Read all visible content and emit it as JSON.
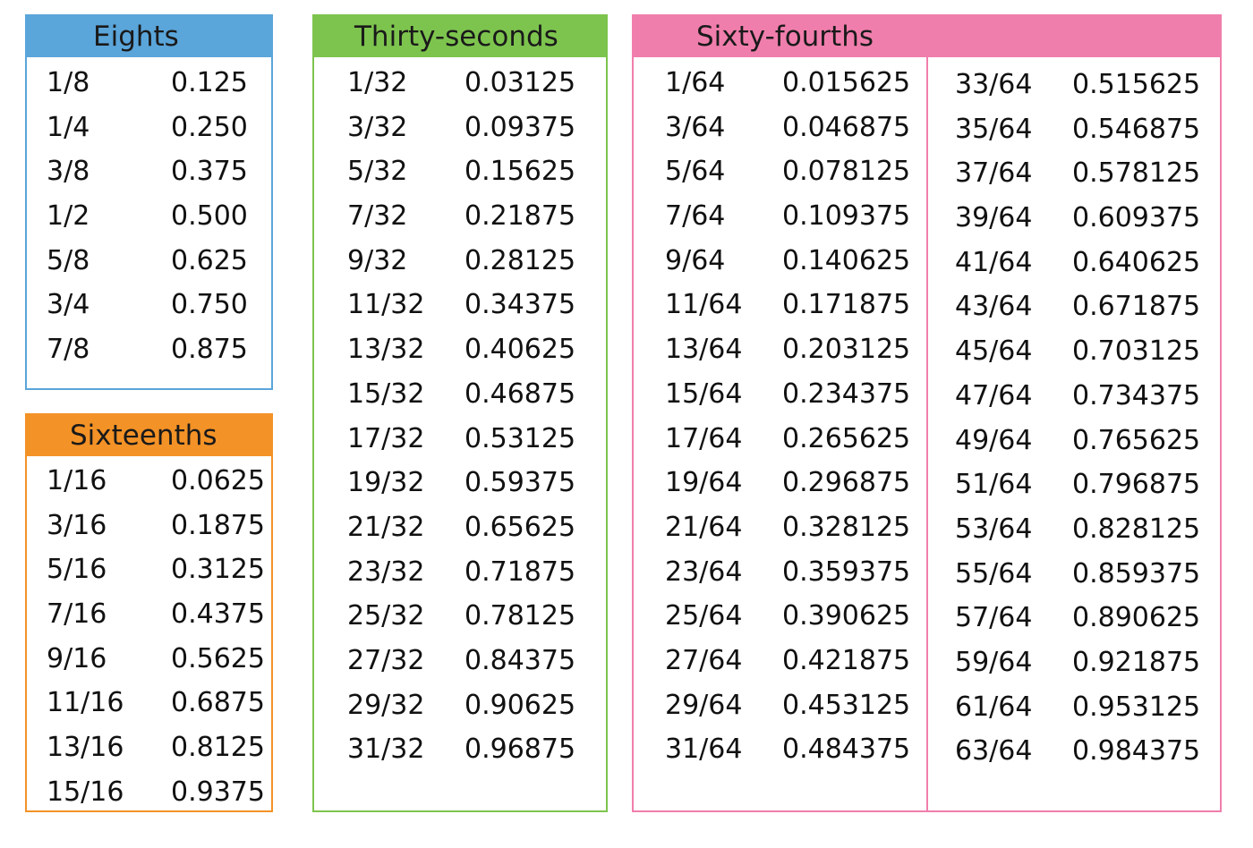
{
  "eighths": {
    "title": "Eights",
    "color": "#5aa5da",
    "rows": [
      {
        "fraction": "1/8",
        "decimal": "0.125"
      },
      {
        "fraction": "1/4",
        "decimal": "0.250"
      },
      {
        "fraction": "3/8",
        "decimal": "0.375"
      },
      {
        "fraction": "1/2",
        "decimal": "0.500"
      },
      {
        "fraction": "5/8",
        "decimal": "0.625"
      },
      {
        "fraction": "3/4",
        "decimal": "0.750"
      },
      {
        "fraction": "7/8",
        "decimal": "0.875"
      }
    ]
  },
  "sixteenths": {
    "title": "Sixteenths",
    "color": "#f39226",
    "rows": [
      {
        "fraction": "1/16",
        "decimal": "0.0625"
      },
      {
        "fraction": "3/16",
        "decimal": "0.1875"
      },
      {
        "fraction": "5/16",
        "decimal": "0.3125"
      },
      {
        "fraction": "7/16",
        "decimal": "0.4375"
      },
      {
        "fraction": "9/16",
        "decimal": "0.5625"
      },
      {
        "fraction": "11/16",
        "decimal": "0.6875"
      },
      {
        "fraction": "13/16",
        "decimal": "0.8125"
      },
      {
        "fraction": "15/16",
        "decimal": "0.9375"
      }
    ]
  },
  "thirtyseconds": {
    "title": "Thirty-seconds",
    "color": "#7dc44e",
    "rows": [
      {
        "fraction": "1/32",
        "decimal": "0.03125"
      },
      {
        "fraction": "3/32",
        "decimal": "0.09375"
      },
      {
        "fraction": "5/32",
        "decimal": "0.15625"
      },
      {
        "fraction": "7/32",
        "decimal": "0.21875"
      },
      {
        "fraction": "9/32",
        "decimal": "0.28125"
      },
      {
        "fraction": "11/32",
        "decimal": "0.34375"
      },
      {
        "fraction": "13/32",
        "decimal": "0.40625"
      },
      {
        "fraction": "15/32",
        "decimal": "0.46875"
      },
      {
        "fraction": "17/32",
        "decimal": "0.53125"
      },
      {
        "fraction": "19/32",
        "decimal": "0.59375"
      },
      {
        "fraction": "21/32",
        "decimal": "0.65625"
      },
      {
        "fraction": "23/32",
        "decimal": "0.71875"
      },
      {
        "fraction": "25/32",
        "decimal": "0.78125"
      },
      {
        "fraction": "27/32",
        "decimal": "0.84375"
      },
      {
        "fraction": "29/32",
        "decimal": "0.90625"
      },
      {
        "fraction": "31/32",
        "decimal": "0.96875"
      }
    ]
  },
  "sixtyfourths": {
    "title": "Sixty-fourths",
    "color": "#f07eac",
    "left_rows": [
      {
        "fraction": "1/64",
        "decimal": "0.015625"
      },
      {
        "fraction": "3/64",
        "decimal": "0.046875"
      },
      {
        "fraction": "5/64",
        "decimal": "0.078125"
      },
      {
        "fraction": "7/64",
        "decimal": "0.109375"
      },
      {
        "fraction": "9/64",
        "decimal": "0.140625"
      },
      {
        "fraction": "11/64",
        "decimal": "0.171875"
      },
      {
        "fraction": "13/64",
        "decimal": "0.203125"
      },
      {
        "fraction": "15/64",
        "decimal": "0.234375"
      },
      {
        "fraction": "17/64",
        "decimal": "0.265625"
      },
      {
        "fraction": "19/64",
        "decimal": "0.296875"
      },
      {
        "fraction": "21/64",
        "decimal": "0.328125"
      },
      {
        "fraction": "23/64",
        "decimal": "0.359375"
      },
      {
        "fraction": "25/64",
        "decimal": "0.390625"
      },
      {
        "fraction": "27/64",
        "decimal": "0.421875"
      },
      {
        "fraction": "29/64",
        "decimal": "0.453125"
      },
      {
        "fraction": "31/64",
        "decimal": "0.484375"
      }
    ],
    "right_rows": [
      {
        "fraction": "33/64",
        "decimal": "0.515625"
      },
      {
        "fraction": "35/64",
        "decimal": "0.546875"
      },
      {
        "fraction": "37/64",
        "decimal": "0.578125"
      },
      {
        "fraction": "39/64",
        "decimal": "0.609375"
      },
      {
        "fraction": "41/64",
        "decimal": "0.640625"
      },
      {
        "fraction": "43/64",
        "decimal": "0.671875"
      },
      {
        "fraction": "45/64",
        "decimal": "0.703125"
      },
      {
        "fraction": "47/64",
        "decimal": "0.734375"
      },
      {
        "fraction": "49/64",
        "decimal": "0.765625"
      },
      {
        "fraction": "51/64",
        "decimal": "0.796875"
      },
      {
        "fraction": "53/64",
        "decimal": "0.828125"
      },
      {
        "fraction": "55/64",
        "decimal": "0.859375"
      },
      {
        "fraction": "57/64",
        "decimal": "0.890625"
      },
      {
        "fraction": "59/64",
        "decimal": "0.921875"
      },
      {
        "fraction": "61/64",
        "decimal": "0.953125"
      },
      {
        "fraction": "63/64",
        "decimal": "0.984375"
      }
    ]
  }
}
